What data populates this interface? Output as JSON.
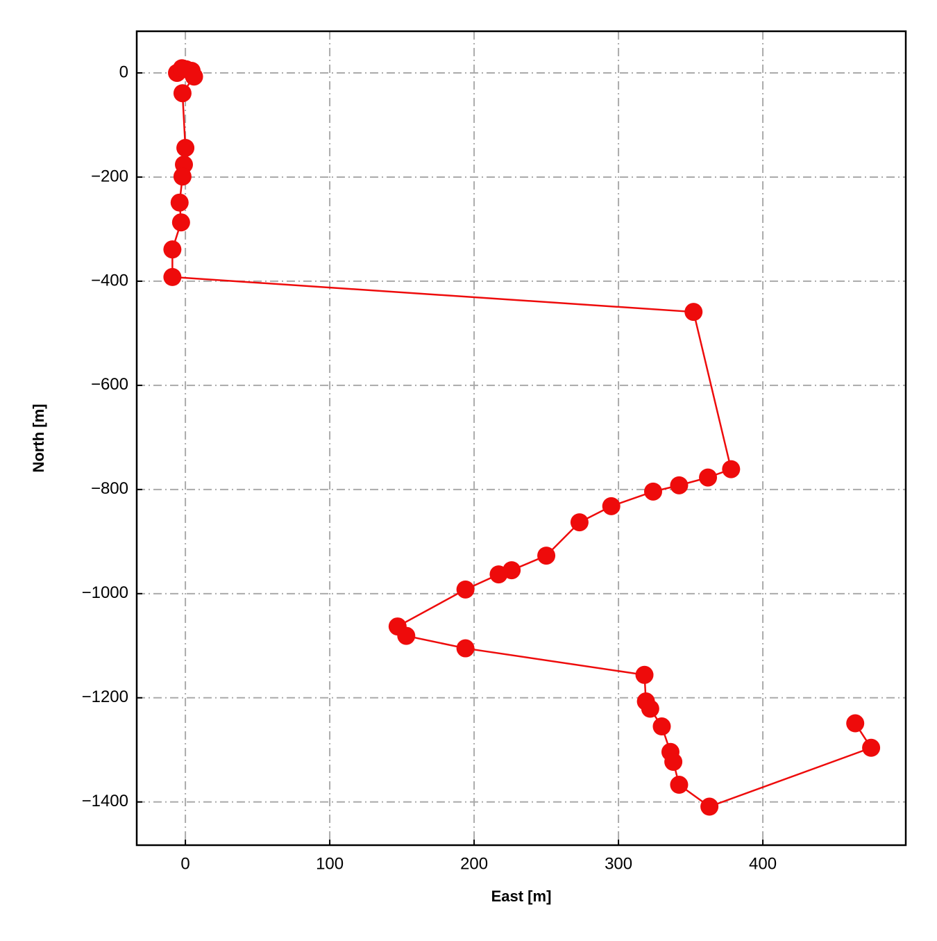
{
  "chart_data": {
    "type": "line",
    "xlabel": "East [m]",
    "ylabel": "North [m]",
    "x": [
      -5.8,
      -2.4,
      0.5,
      4.3,
      6,
      -2,
      0,
      -1,
      -2,
      -4,
      -3,
      -9,
      -9,
      352,
      378,
      362,
      342,
      324,
      295,
      273,
      250,
      226,
      217,
      194,
      147,
      153,
      194,
      318,
      319,
      322,
      330,
      336,
      338,
      342,
      363,
      475,
      464
    ],
    "values": [
      0,
      9,
      7,
      4,
      -7,
      -39,
      -144,
      -176,
      -199,
      -249,
      -287,
      -339,
      -392,
      -459,
      -761,
      -777,
      -792,
      -804,
      -832,
      -863,
      -927,
      -955,
      -963,
      -992,
      -1063,
      -1081,
      -1105,
      -1156,
      -1207,
      -1221,
      -1255,
      -1304,
      -1323,
      -1367,
      -1409,
      -1296,
      -1249
    ],
    "color": "#ee0b0b",
    "xlim": [
      -33.7,
      499
    ],
    "ylim": [
      -1483,
      80
    ],
    "xticks": [
      0,
      100,
      200,
      300,
      400
    ],
    "yticks": [
      {
        "value": -1400,
        "label": "−1400"
      },
      {
        "value": -1200,
        "label": "−1200"
      },
      {
        "value": -1000,
        "label": "−1000"
      },
      {
        "value": -800,
        "label": "−800"
      },
      {
        "value": -600,
        "label": "−600"
      },
      {
        "value": -400,
        "label": "−400"
      },
      {
        "value": -200,
        "label": "−200"
      },
      0
    ],
    "grid": true
  }
}
